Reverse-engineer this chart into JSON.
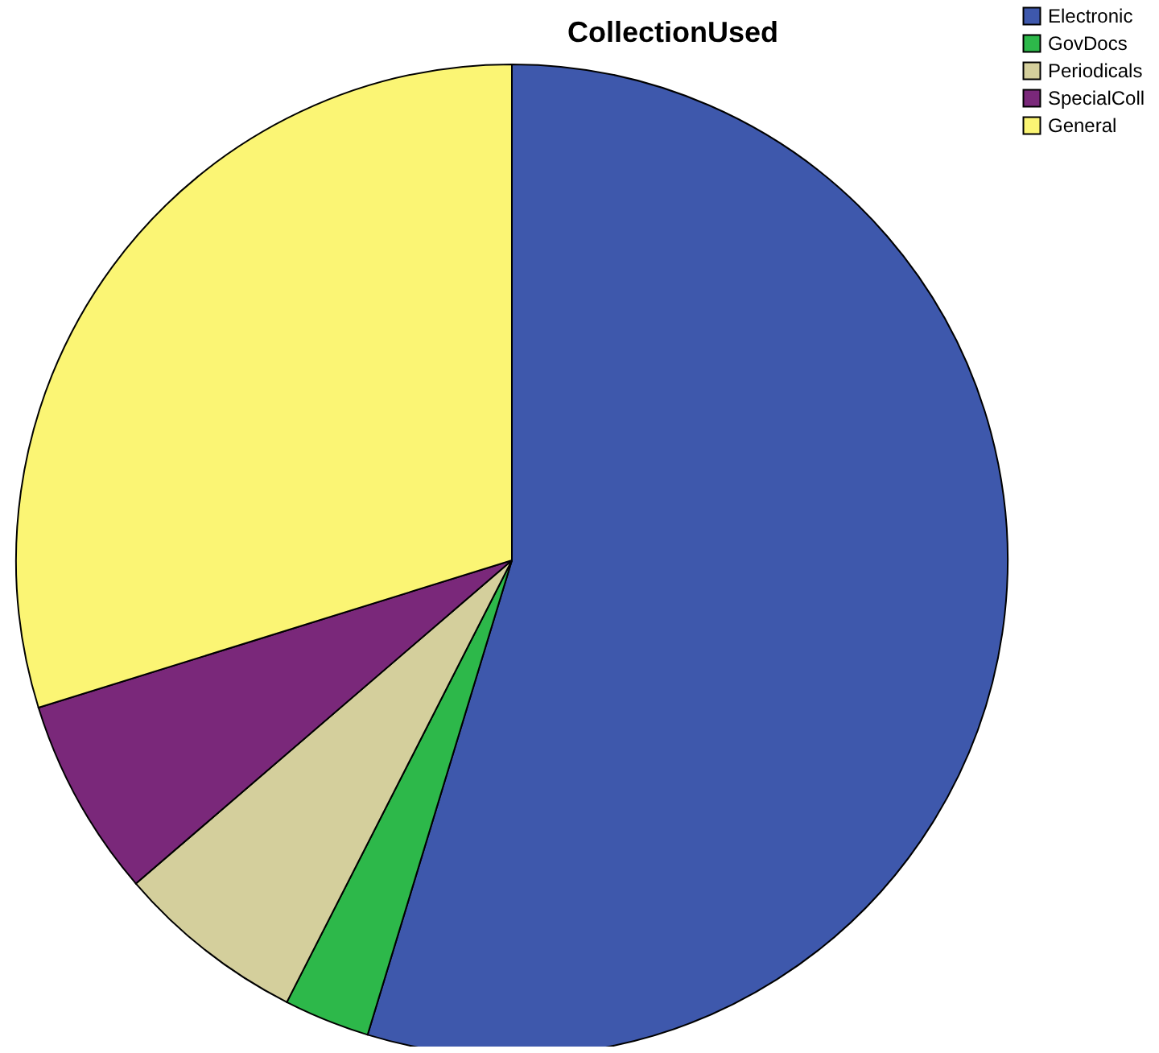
{
  "chart_data": {
    "type": "pie",
    "title": "CollectionUsed",
    "categories": [
      "Electronic",
      "GovDocs",
      "Periodicals",
      "SpecialColl",
      "General"
    ],
    "values": [
      54.7,
      2.8,
      6.2,
      6.5,
      29.8
    ],
    "colors": [
      "#3e58ac",
      "#2db84a",
      "#d4cf9c",
      "#7a287a",
      "#fbf574"
    ],
    "legend": "top right"
  }
}
